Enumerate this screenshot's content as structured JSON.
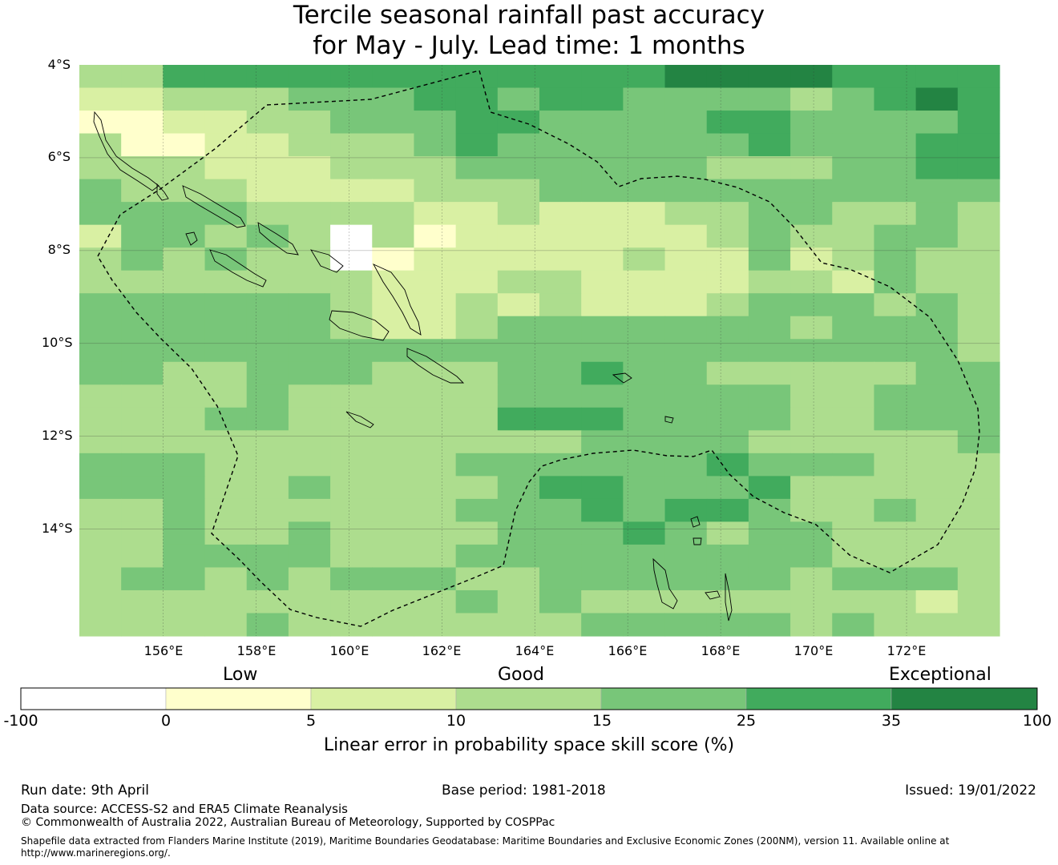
{
  "title": {
    "line1": "Tercile seasonal rainfall past accuracy",
    "line2": "for May - July. Lead time: 1 months"
  },
  "map": {
    "latitude_labels": [
      "4°S",
      "6°S",
      "8°S",
      "10°S",
      "12°S",
      "14°S"
    ],
    "longitude_labels": [
      "156°E",
      "158°E",
      "160°E",
      "162°E",
      "164°E",
      "166°E",
      "168°E",
      "170°E",
      "172°E"
    ],
    "lon_range_deg_e": [
      154.2,
      174.0
    ],
    "lat_range_deg_s": [
      4.0,
      16.3
    ],
    "boundary_style": "dashed",
    "coastline_color": "#000000"
  },
  "colorbar": {
    "category_labels": [
      "Low",
      "Good",
      "Exceptional"
    ],
    "tick_labels": [
      "-100",
      "0",
      "5",
      "10",
      "15",
      "25",
      "35",
      "100"
    ],
    "colors": [
      "#ffffff",
      "#ffffcc",
      "#d9f0a3",
      "#addd8e",
      "#78c679",
      "#41ab5d",
      "#238443"
    ],
    "title": "Linear error in probability space skill score (%)"
  },
  "footer": {
    "run_date": "Run date: 9th April",
    "base_period": "Base period: 1981-2018",
    "issued": "Issued: 19/01/2022",
    "data_source": "Data source: ACCESS-S2 and ERA5 Climate Reanalysis",
    "copyright": "© Commonwealth of Australia 2022, Australian Bureau of Meteorology, Supported by COSPPac",
    "shapefile_line1": "Shapefile data extracted from Flanders Marine Institute (2019), Maritime Boundaries Geodatabase: Maritime Boundaries and Exclusive Economic Zones (200NM), version 11. Available online at",
    "shapefile_line2": "http://www.marineregions.org/."
  }
}
